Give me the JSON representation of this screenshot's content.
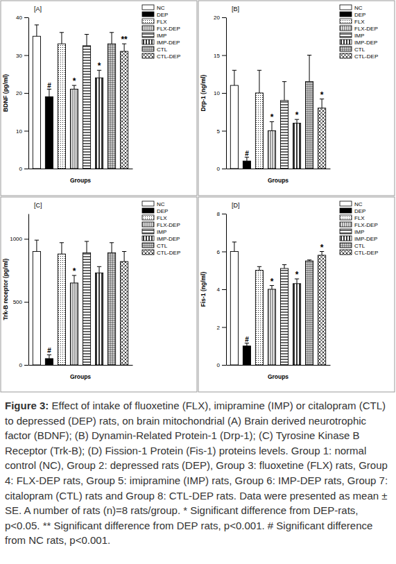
{
  "chart_data": [
    {
      "type": "bar",
      "title": "[A]",
      "y_label": "BDNF (pg/ml)",
      "x_label": "Groups",
      "categories": [
        "NC",
        "DEP",
        "FLX",
        "FLX-DEP",
        "IMP",
        "IMP-DEP",
        "CTL",
        "CTL-DEP"
      ],
      "values": [
        35,
        19,
        33,
        21,
        32.5,
        24,
        33,
        31
      ],
      "errors": [
        3,
        2,
        3,
        1,
        3,
        2,
        3,
        2
      ],
      "annotations": [
        null,
        "#",
        null,
        "*",
        null,
        "*",
        null,
        "**"
      ],
      "colors": [
        "#ffffff",
        "#000000",
        "#ffffff",
        "#ffffff",
        "#ffffff",
        "#ffffff",
        "#ffffff",
        "#ffffff"
      ],
      "ylim": [
        0,
        40
      ],
      "yticks": [
        0,
        10,
        20,
        30,
        40
      ],
      "grid": false,
      "legend": "top-right",
      "tick_labels": "y"
    },
    {
      "type": "bar",
      "title": "[B]",
      "y_label": "Drp-1 (ng/ml)",
      "x_label": "Groups",
      "categories": [
        "NC",
        "DEP",
        "FLX",
        "FLX-DEP",
        "IMP",
        "IMP-DEP",
        "CTL",
        "CTL-DEP"
      ],
      "values": [
        11,
        1,
        10,
        5,
        9,
        6,
        11.5,
        8
      ],
      "errors": [
        2,
        0.5,
        3,
        1.2,
        2.5,
        0.5,
        3.5,
        1.2
      ],
      "annotations": [
        null,
        "#",
        null,
        "*",
        null,
        "*",
        null,
        "*"
      ],
      "colors": [
        "#ffffff",
        "#000000",
        "#ffffff",
        "#ffffff",
        "#ffffff",
        "#ffffff",
        "#ffffff",
        "#ffffff"
      ],
      "ylim": [
        0,
        20
      ],
      "yticks": [
        0,
        5,
        10,
        15,
        20
      ],
      "grid": false,
      "legend": "top-right",
      "tick_labels": "y"
    },
    {
      "type": "bar",
      "title": "[C]",
      "y_label": "Trk-B receptor (pg/ml)",
      "x_label": "Groups",
      "categories": [
        "NC",
        "DEP",
        "FLX",
        "FLX-DEP",
        "IMP",
        "IMP-DEP",
        "CTL",
        "CTL-DEP"
      ],
      "values": [
        900,
        50,
        880,
        650,
        890,
        730,
        890,
        820
      ],
      "errors": [
        90,
        30,
        90,
        60,
        90,
        50,
        80,
        80
      ],
      "annotations": [
        null,
        "#",
        null,
        "*",
        null,
        null,
        null,
        null
      ],
      "colors": [
        "#ffffff",
        "#000000",
        "#ffffff",
        "#ffffff",
        "#ffffff",
        "#ffffff",
        "#ffffff",
        "#ffffff"
      ],
      "ylim": [
        0,
        1200
      ],
      "yticks": [
        0,
        500,
        1000
      ],
      "grid": false,
      "legend": "top-right",
      "tick_labels": "y"
    },
    {
      "type": "bar",
      "title": "[D]",
      "y_label": "Fis-1 (ng/ml)",
      "x_label": "Groups",
      "categories": [
        "NC",
        "DEP",
        "FLX",
        "FLX-DEP",
        "IMP",
        "IMP-DEP",
        "CTL",
        "CTL-DEP"
      ],
      "values": [
        6,
        1,
        5,
        4,
        5.1,
        4.3,
        5.5,
        5.8
      ],
      "errors": [
        0.5,
        0.15,
        0.2,
        0.2,
        0.2,
        0.25,
        0.05,
        0.2
      ],
      "annotations": [
        null,
        "#",
        null,
        "*",
        null,
        "*",
        null,
        "*"
      ],
      "colors": [
        "#ffffff",
        "#000000",
        "#ffffff",
        "#ffffff",
        "#ffffff",
        "#ffffff",
        "#ffffff",
        "#ffffff"
      ],
      "ylim": [
        0,
        8
      ],
      "yticks": [
        0,
        2,
        4,
        6,
        8
      ],
      "grid": false,
      "legend": "top-right",
      "tick_labels": "y"
    }
  ],
  "caption": {
    "label": "Figure 3:",
    "text": "Effect of intake of fluoxetine (FLX), imipramine (IMP) or citalopram (CTL) to depressed (DEP) rats, on brain mitochondrial (A) Brain derived neurotrophic factor (BDNF); (B) Dynamin-Related Protein-1 (Drp-1); (C) Tyrosine Kinase B Receptor (Trk-B); (D) Fission-1 Protein (Fis-1) proteins levels. Group 1: normal control (NC), Group 2: depressed rats (DEP), Group 3: fluoxetine (FLX) rats, Group 4: FLX-DEP rats, Group 5: imipramine (IMP) rats, Group 6: IMP-DEP rats, Group 7: citalopram (CTL) rats and Group 8: CTL-DEP rats. Data were presented as mean ± SE. A number of rats (n)=8 rats/group. * Significant difference from DEP-rats, p<0.05. ** Significant difference from DEP rats, p<0.001. # Significant difference from NC rats, p<0.001."
  }
}
